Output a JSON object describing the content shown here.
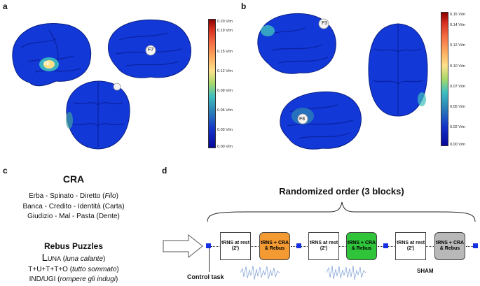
{
  "panel_a": {
    "label": "a",
    "electrode_labels": [
      "T8",
      "F7"
    ],
    "colorbar": {
      "ticks": [
        "0.20 V/m",
        "0.19 V/m",
        "0.15 V/m",
        "0.12 V/m",
        "0.09 V/m",
        "0.06 V/m",
        "0.03 V/m",
        "0.00 V/m"
      ]
    }
  },
  "panel_b": {
    "label": "b",
    "electrode_labels": [
      "F3",
      "F4",
      "F8"
    ],
    "colorbar": {
      "ticks": [
        "0.15 V/m",
        "0.14 V/m",
        "0.12 V/m",
        "0.10 V/m",
        "0.07 V/m",
        "0.05 V/m",
        "0.02 V/m",
        "0.00 V/m"
      ]
    }
  },
  "panel_c": {
    "label": "c",
    "cra_title": "CRA",
    "cra_items": [
      {
        "words": "Erba - Spinato - Diretto (",
        "answer": "Filo",
        "close": ")",
        "italic": true
      },
      {
        "words": "Banca - Credito - Identità (",
        "answer": "Carta",
        "close": ")",
        "italic": false
      },
      {
        "words": "Giudizio - Mal - Pasta (",
        "answer": "Dente",
        "close": ")",
        "italic": false
      }
    ],
    "rebus_title": "Rebus Puzzles",
    "rebus_items": [
      {
        "puzzle_big": "L",
        "puzzle_small": "UNA",
        "answer": "luna calante"
      },
      {
        "puzzle": "T+U+T+T+O",
        "answer": "tutto sommato"
      },
      {
        "puzzle": "IND/UGI",
        "answer": "rompere gli indugi"
      }
    ]
  },
  "panel_d": {
    "label": "d",
    "title": "Randomized order (3 blocks)",
    "control_task": "Control task",
    "sham": "SHAM",
    "rest_box": "tRNS at rest (2')",
    "task_box": "tRNS + CRA & Rebus",
    "colors": {
      "block1": "#f39a32",
      "block2": "#2fc43a",
      "block3": "#b8b8b8",
      "square": "#1530e0"
    }
  }
}
